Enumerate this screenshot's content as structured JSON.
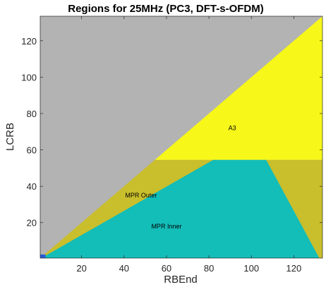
{
  "chart_data": {
    "type": "heatmap",
    "title": "Regions for 25MHz (PC3, DFT-s-OFDM)",
    "xlabel": "RBEnd",
    "ylabel": "LCRB",
    "xlim": [
      1,
      133
    ],
    "ylim": [
      1,
      133
    ],
    "xticks": [
      20,
      40,
      60,
      80,
      100,
      120
    ],
    "yticks": [
      20,
      40,
      60,
      80,
      100,
      120
    ],
    "grid": false,
    "colors": {
      "invalid": "#b3b3b3",
      "a3": "#f7f71a",
      "mpr_outer": "#c9be2c",
      "mpr_inner": "#13bdb8",
      "edge": "#2a5cd9"
    },
    "regions": [
      {
        "name": "A3",
        "label_x": 91,
        "label_y": 72
      },
      {
        "name": "MPR Outer",
        "label_x": 48,
        "label_y": 35
      },
      {
        "name": "MPR Inner",
        "label_x": 60,
        "label_y": 18
      }
    ],
    "boundaries": {
      "a3_min_lcrb": 55,
      "inner_left_slope_start": 1,
      "inner_left_slope_end": [
        82,
        55
      ],
      "inner_right_edge_top": [
        107,
        55
      ],
      "inner_right_edge_bottom": [
        132,
        1
      ]
    }
  }
}
